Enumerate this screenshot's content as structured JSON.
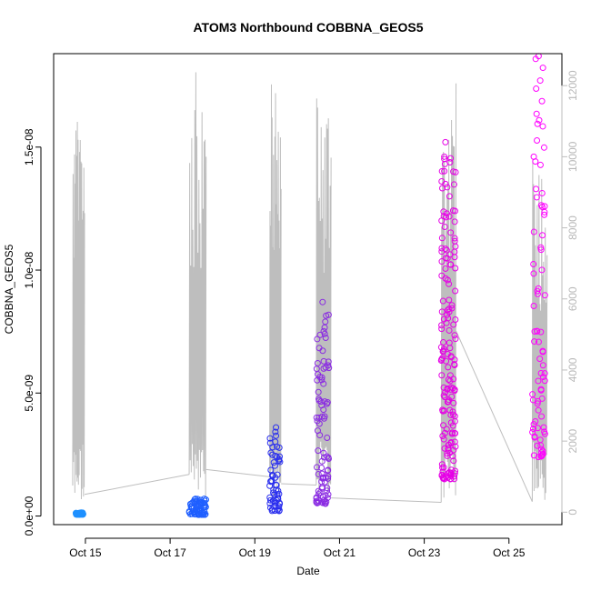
{
  "chart_data": {
    "type": "scatter",
    "title": "ATOM3 Northbound COBBNA_GEOS5",
    "xlabel": "Date",
    "ylabel": "COBBNA_GEOS5",
    "x_unit": "days",
    "x_tick_labels": [
      "Oct 15",
      "Oct 17",
      "Oct 19",
      "Oct 21",
      "Oct 23",
      "Oct 25"
    ],
    "x_tick_values": [
      15,
      17,
      19,
      21,
      23,
      25
    ],
    "xlim": [
      14.25,
      26.25
    ],
    "ylim": [
      -3.5e-10,
      1.88e-08
    ],
    "y_tick_values": [
      0,
      5e-09,
      1e-08,
      1.5e-08
    ],
    "y_tick_labels": [
      "0.0e+00",
      "5.0e-09",
      "1.0e-08",
      "1.5e-08"
    ],
    "y2lim": [
      -350,
      12900
    ],
    "y2_tick_values": [
      0,
      2000,
      4000,
      6000,
      8000,
      10000,
      12000
    ],
    "y2_tick_labels": [
      "0",
      "2000",
      "4000",
      "6000",
      "8000",
      "10000",
      "12000"
    ],
    "altitude_line_color": "#bebebe",
    "groups": [
      {
        "day": 14.9,
        "x_range": [
          14.75,
          14.95
        ],
        "y_range": [
          6e-11,
          1.4e-10
        ],
        "n": 40,
        "color": "#1e90ff"
      },
      {
        "day": 17.6,
        "x_range": [
          17.45,
          17.85
        ],
        "y_range": [
          5e-11,
          7e-10
        ],
        "n": 70,
        "color": "#1f5fff"
      },
      {
        "day": 19.5,
        "x_range": [
          19.35,
          19.6
        ],
        "y_range": [
          2e-10,
          3.6e-09
        ],
        "n": 60,
        "color": "#2a2fee"
      },
      {
        "day": 20.6,
        "x_range": [
          20.45,
          20.75
        ],
        "y_range": [
          5e-10,
          8.7e-09
        ],
        "n": 90,
        "color": "#8a2be2"
      },
      {
        "day": 23.5,
        "x_range": [
          23.4,
          23.75
        ],
        "y_range": [
          1.5e-09,
          1.52e-08
        ],
        "n": 170,
        "color": "#e600e6"
      },
      {
        "day": 25.7,
        "x_range": [
          25.55,
          25.85
        ],
        "y_range": [
          2.4e-09,
          1.87e-08
        ],
        "n": 80,
        "color": "#ff00ff"
      }
    ],
    "altitude_envelopes": [
      {
        "x_range": [
          14.7,
          14.98
        ],
        "top": 11400,
        "connect_to": 500
      },
      {
        "x_range": [
          17.45,
          17.85
        ],
        "top": 12400,
        "connect_to": 1200
      },
      {
        "x_range": [
          19.35,
          19.62
        ],
        "top": 12200,
        "connect_to": 800
      },
      {
        "x_range": [
          20.45,
          20.8
        ],
        "top": 12000,
        "connect_to": 400
      },
      {
        "x_range": [
          23.4,
          23.75
        ],
        "top": 12100,
        "connect_to": 5100
      },
      {
        "x_range": [
          25.55,
          25.9
        ],
        "top": 10200,
        "connect_to": 900
      }
    ]
  }
}
